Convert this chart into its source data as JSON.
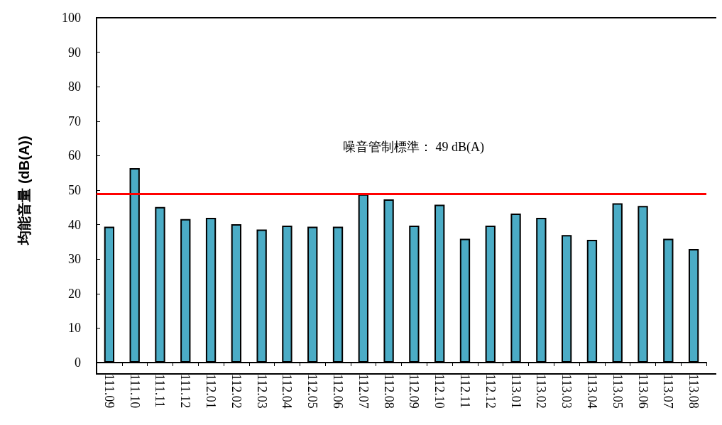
{
  "chart_data": {
    "type": "bar",
    "ylabel": "均能音量 (dB(A))",
    "categories": [
      "111.09",
      "111.10",
      "111.11",
      "111.12",
      "112.01",
      "112.02",
      "112.03",
      "112.04",
      "112.05",
      "112.06",
      "112.07",
      "112.08",
      "112.09",
      "112.10",
      "112.11",
      "112.12",
      "113.01",
      "113.02",
      "113.03",
      "113.04",
      "113.05",
      "113.06",
      "113.07",
      "113.08"
    ],
    "values": [
      39.4,
      56.4,
      45.1,
      41.6,
      42.0,
      40.1,
      38.6,
      39.7,
      39.4,
      39.4,
      48.8,
      47.3,
      39.7,
      45.8,
      35.9,
      39.7,
      43.2,
      42.0,
      37.0,
      35.6,
      46.2,
      45.4,
      35.9,
      32.9
    ],
    "color": "#4bacc6",
    "ylim": [
      0,
      100
    ],
    "yticks": [
      0,
      10,
      20,
      30,
      40,
      50,
      60,
      70,
      80,
      90,
      100
    ],
    "ref_lines": [
      {
        "axis": "y",
        "value": 49,
        "color": "#ff0000",
        "line_style": "solid"
      }
    ],
    "annotations": [
      "噪音管制標準： 49 dB(A)"
    ],
    "grid": false
  }
}
